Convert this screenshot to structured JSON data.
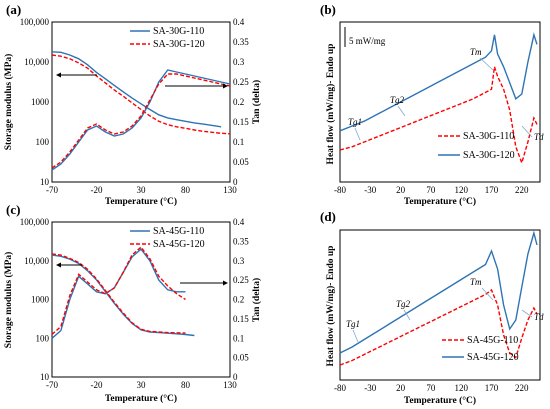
{
  "colors": {
    "blue": "#2e74b5",
    "red": "#ff0000",
    "axis": "#000000"
  },
  "panels": [
    {
      "letter": "(a)",
      "xlabel": "Temperature (°C)",
      "ylabel_left": "Storage modulus (MPa)",
      "ylabel_right": "Tan (delta)",
      "xticks": [
        "-70",
        "-20",
        "30",
        "80",
        "130"
      ],
      "yticks_left": [
        "10",
        "100",
        "1000",
        "10,000",
        "100,000"
      ],
      "yticks_right": [
        "0",
        "0.05",
        "0.1",
        "0.15",
        "0.2",
        "0.25",
        "0.3",
        "0.35",
        "0.4"
      ],
      "legend": [
        "SA-30G-110",
        "SA-30G-120"
      ]
    },
    {
      "letter": "(b)",
      "xlabel": "Temperature (°C)",
      "ylabel_left": "Heat flow (mW/mg)- Endo up",
      "xticks": [
        "-80",
        "-30",
        "20",
        "70",
        "120",
        "170",
        "220"
      ],
      "scale_label": "5 mW/mg",
      "legend": [
        "SA-30G-110",
        "SA-30G-120"
      ],
      "annotations": [
        "Tm",
        "Tg2",
        "Tg1",
        "Td"
      ]
    },
    {
      "letter": "(c)",
      "xlabel": "Temperature (°C)",
      "ylabel_left": "Storage modulus (MPa)",
      "ylabel_right": "Tan (delta)",
      "xticks": [
        "-70",
        "-20",
        "30",
        "80",
        "130"
      ],
      "yticks_left": [
        "10",
        "100",
        "1000",
        "10,000",
        "100,000"
      ],
      "yticks_right": [
        "0",
        "0.05",
        "0.1",
        "0.15",
        "0.2",
        "0.25",
        "0.3",
        "0.35",
        "0.4"
      ],
      "legend": [
        "SA-45G-110",
        "SA-45G-120"
      ]
    },
    {
      "letter": "(d)",
      "xlabel": "Temperature (°C)",
      "ylabel_left": "Heat flow (mW/mg)- Endo up",
      "xticks": [
        "-80",
        "-30",
        "20",
        "70",
        "120",
        "170",
        "220"
      ],
      "legend": [
        "SA-45G-110",
        "SA-45G-120"
      ],
      "annotations": [
        "Tm",
        "Tg2",
        "Tg1",
        "Td"
      ]
    }
  ],
  "chart_data": [
    {
      "type": "line",
      "panel": "(a)",
      "xlim": [
        -70,
        130
      ],
      "ylim_left_log": [
        10,
        100000
      ],
      "ylim_right": [
        0,
        0.4
      ],
      "series": [
        {
          "name": "SA-30G-110",
          "axis": "left",
          "x": [
            -70,
            -60,
            -50,
            -40,
            -30,
            -20,
            -10,
            0,
            10,
            20,
            30,
            40,
            50,
            60,
            70,
            80,
            90,
            100,
            110,
            120
          ],
          "y": [
            18000,
            17500,
            15000,
            12000,
            8500,
            5500,
            3800,
            2600,
            1800,
            1250,
            900,
            650,
            480,
            400,
            360,
            330,
            300,
            280,
            260,
            240
          ]
        },
        {
          "name": "SA-30G-120",
          "axis": "left",
          "x": [
            -70,
            -60,
            -50,
            -40,
            -30,
            -20,
            -10,
            0,
            10,
            20,
            30,
            40,
            50,
            60,
            70,
            80,
            90,
            100,
            110,
            120,
            130
          ],
          "y": [
            15000,
            14000,
            12000,
            9500,
            7000,
            4500,
            3000,
            2000,
            1400,
            950,
            650,
            450,
            330,
            270,
            240,
            220,
            200,
            185,
            175,
            165,
            160
          ]
        },
        {
          "name": "SA-30G-110",
          "axis": "right",
          "x": [
            -70,
            -60,
            -50,
            -40,
            -30,
            -20,
            -10,
            0,
            10,
            20,
            30,
            40,
            50,
            60,
            70,
            80,
            90,
            100,
            110,
            120,
            130
          ],
          "y": [
            0.03,
            0.045,
            0.07,
            0.1,
            0.13,
            0.14,
            0.125,
            0.115,
            0.12,
            0.135,
            0.16,
            0.2,
            0.25,
            0.28,
            0.275,
            0.27,
            0.265,
            0.26,
            0.255,
            0.25,
            0.245
          ]
        },
        {
          "name": "SA-30G-120",
          "axis": "right",
          "x": [
            -70,
            -60,
            -50,
            -40,
            -30,
            -20,
            -10,
            0,
            10,
            20,
            30,
            40,
            50,
            60,
            70,
            80,
            90,
            100,
            110,
            120,
            130
          ],
          "y": [
            0.035,
            0.05,
            0.075,
            0.105,
            0.135,
            0.145,
            0.13,
            0.12,
            0.125,
            0.14,
            0.165,
            0.205,
            0.245,
            0.27,
            0.27,
            0.265,
            0.26,
            0.255,
            0.25,
            0.245,
            0.24
          ]
        }
      ]
    },
    {
      "type": "line",
      "panel": "(b)",
      "xlim": [
        -80,
        250
      ],
      "series": [
        {
          "name": "SA-30G-110",
          "x": [
            -80,
            -60,
            -40,
            -20,
            0,
            20,
            40,
            60,
            80,
            100,
            120,
            140,
            160,
            170,
            175,
            180,
            190,
            200,
            210,
            220,
            230,
            240,
            245
          ],
          "y": [
            0.2,
            0.22,
            0.25,
            0.28,
            0.31,
            0.34,
            0.37,
            0.4,
            0.43,
            0.46,
            0.49,
            0.52,
            0.56,
            0.58,
            0.72,
            0.66,
            0.58,
            0.45,
            0.22,
            0.12,
            0.25,
            0.4,
            0.36
          ]
        },
        {
          "name": "SA-30G-120",
          "x": [
            -80,
            -60,
            -40,
            -20,
            0,
            20,
            40,
            60,
            80,
            100,
            120,
            140,
            160,
            170,
            175,
            180,
            190,
            200,
            210,
            220,
            230,
            240,
            245
          ],
          "y": [
            0.32,
            0.35,
            0.38,
            0.42,
            0.46,
            0.5,
            0.54,
            0.58,
            0.62,
            0.66,
            0.7,
            0.74,
            0.78,
            0.82,
            0.92,
            0.8,
            0.72,
            0.62,
            0.52,
            0.55,
            0.75,
            0.92,
            0.86
          ]
        }
      ]
    },
    {
      "type": "line",
      "panel": "(c)",
      "xlim": [
        -70,
        130
      ],
      "ylim_left_log": [
        10,
        100000
      ],
      "ylim_right": [
        0,
        0.4
      ],
      "series": [
        {
          "name": "SA-45G-110",
          "axis": "left",
          "x": [
            -70,
            -60,
            -50,
            -40,
            -30,
            -20,
            -10,
            0,
            10,
            20,
            30,
            40,
            50,
            60,
            70,
            80,
            90
          ],
          "y": [
            14000,
            13000,
            11000,
            8500,
            5500,
            3200,
            1600,
            800,
            420,
            240,
            165,
            145,
            140,
            135,
            130,
            125,
            118
          ]
        },
        {
          "name": "SA-45G-120",
          "axis": "left",
          "x": [
            -70,
            -60,
            -50,
            -40,
            -30,
            -20,
            -10,
            0,
            10,
            20,
            30,
            40,
            50,
            60,
            70,
            80
          ],
          "y": [
            15000,
            14000,
            11500,
            9000,
            6000,
            3400,
            1700,
            850,
            450,
            250,
            170,
            150,
            145,
            140,
            138,
            136
          ]
        },
        {
          "name": "SA-45G-110",
          "axis": "right",
          "x": [
            -70,
            -60,
            -50,
            -40,
            -30,
            -20,
            -10,
            0,
            10,
            20,
            30,
            40,
            50,
            60,
            70,
            80
          ],
          "y": [
            0.1,
            0.12,
            0.2,
            0.26,
            0.24,
            0.22,
            0.215,
            0.23,
            0.27,
            0.31,
            0.33,
            0.3,
            0.25,
            0.225,
            0.22,
            0.22
          ]
        },
        {
          "name": "SA-45G-120",
          "axis": "right",
          "x": [
            -70,
            -60,
            -50,
            -40,
            -30,
            -20,
            -10,
            0,
            10,
            20,
            30,
            40,
            50,
            60,
            70,
            80
          ],
          "y": [
            0.11,
            0.13,
            0.21,
            0.265,
            0.245,
            0.225,
            0.215,
            0.23,
            0.27,
            0.315,
            0.335,
            0.305,
            0.26,
            0.235,
            0.215,
            0.2
          ]
        }
      ]
    },
    {
      "type": "line",
      "panel": "(d)",
      "xlim": [
        -80,
        250
      ],
      "series": [
        {
          "name": "SA-45G-110",
          "x": [
            -80,
            -60,
            -40,
            -20,
            0,
            20,
            40,
            60,
            80,
            100,
            120,
            140,
            160,
            170,
            180,
            190,
            200,
            210,
            220,
            230,
            240,
            245
          ],
          "y": [
            0.1,
            0.13,
            0.17,
            0.21,
            0.25,
            0.29,
            0.33,
            0.37,
            0.41,
            0.45,
            0.49,
            0.53,
            0.57,
            0.6,
            0.5,
            0.3,
            0.18,
            0.15,
            0.28,
            0.4,
            0.48,
            0.44
          ]
        },
        {
          "name": "SA-45G-120",
          "x": [
            -80,
            -60,
            -40,
            -20,
            0,
            20,
            40,
            60,
            80,
            100,
            120,
            140,
            160,
            170,
            180,
            190,
            200,
            210,
            220,
            230,
            240,
            245
          ],
          "y": [
            0.18,
            0.22,
            0.27,
            0.32,
            0.37,
            0.42,
            0.47,
            0.52,
            0.57,
            0.62,
            0.67,
            0.72,
            0.77,
            0.86,
            0.74,
            0.5,
            0.34,
            0.4,
            0.62,
            0.84,
            0.98,
            0.9
          ]
        }
      ]
    }
  ]
}
